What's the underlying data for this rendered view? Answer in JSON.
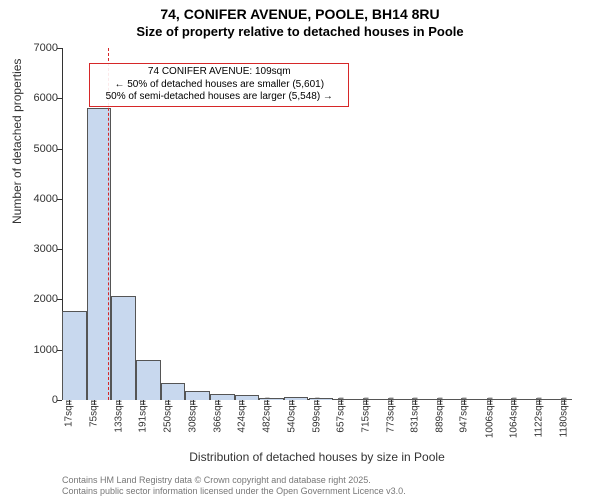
{
  "title": {
    "main": "74, CONIFER AVENUE, POOLE, BH14 8RU",
    "sub": "Size of property relative to detached houses in Poole"
  },
  "ylabel": "Number of detached properties",
  "xlabel": "Distribution of detached houses by size in Poole",
  "attribution": {
    "line1": "Contains HM Land Registry data © Crown copyright and database right 2025.",
    "line2": "Contains public sector information licensed under the Open Government Licence v3.0."
  },
  "chart": {
    "type": "histogram",
    "ylim": [
      0,
      7000
    ],
    "yticks": [
      0,
      1000,
      2000,
      3000,
      4000,
      5000,
      6000,
      7000
    ],
    "xlim": [
      0,
      1200
    ],
    "xticks": [
      17,
      75,
      133,
      191,
      250,
      308,
      366,
      424,
      482,
      540,
      599,
      657,
      715,
      773,
      831,
      889,
      947,
      1006,
      1064,
      1122,
      1180
    ],
    "xtick_suffix": "sqm",
    "bar_fill": "#c8d8ee",
    "bar_border": "#555555",
    "background": "#ffffff",
    "grid_color": "#333333",
    "bins": [
      {
        "start": 0,
        "end": 58,
        "count": 1780
      },
      {
        "start": 58,
        "end": 116,
        "count": 5800
      },
      {
        "start": 116,
        "end": 174,
        "count": 2060
      },
      {
        "start": 174,
        "end": 232,
        "count": 790
      },
      {
        "start": 232,
        "end": 290,
        "count": 340
      },
      {
        "start": 290,
        "end": 348,
        "count": 180
      },
      {
        "start": 348,
        "end": 406,
        "count": 120
      },
      {
        "start": 406,
        "end": 464,
        "count": 90
      },
      {
        "start": 464,
        "end": 522,
        "count": 50
      },
      {
        "start": 522,
        "end": 580,
        "count": 60
      },
      {
        "start": 580,
        "end": 638,
        "count": 40
      },
      {
        "start": 638,
        "end": 696,
        "count": 30
      },
      {
        "start": 696,
        "end": 754,
        "count": 20
      },
      {
        "start": 754,
        "end": 812,
        "count": 10
      },
      {
        "start": 812,
        "end": 870,
        "count": 10
      },
      {
        "start": 870,
        "end": 928,
        "count": 8
      },
      {
        "start": 928,
        "end": 986,
        "count": 6
      },
      {
        "start": 986,
        "end": 1044,
        "count": 6
      },
      {
        "start": 1044,
        "end": 1102,
        "count": 4
      },
      {
        "start": 1102,
        "end": 1160,
        "count": 4
      },
      {
        "start": 1160,
        "end": 1200,
        "count": 2
      }
    ],
    "reference_line": {
      "x": 109,
      "color": "#d62728"
    },
    "annotation": {
      "line1": "74 CONIFER AVENUE: 109sqm",
      "line2": "← 50% of detached houses are smaller (5,601)",
      "line3": "50% of semi-detached houses are larger (5,548) →",
      "border_color": "#d62728",
      "x_center": 370,
      "y_top": 6700
    }
  }
}
